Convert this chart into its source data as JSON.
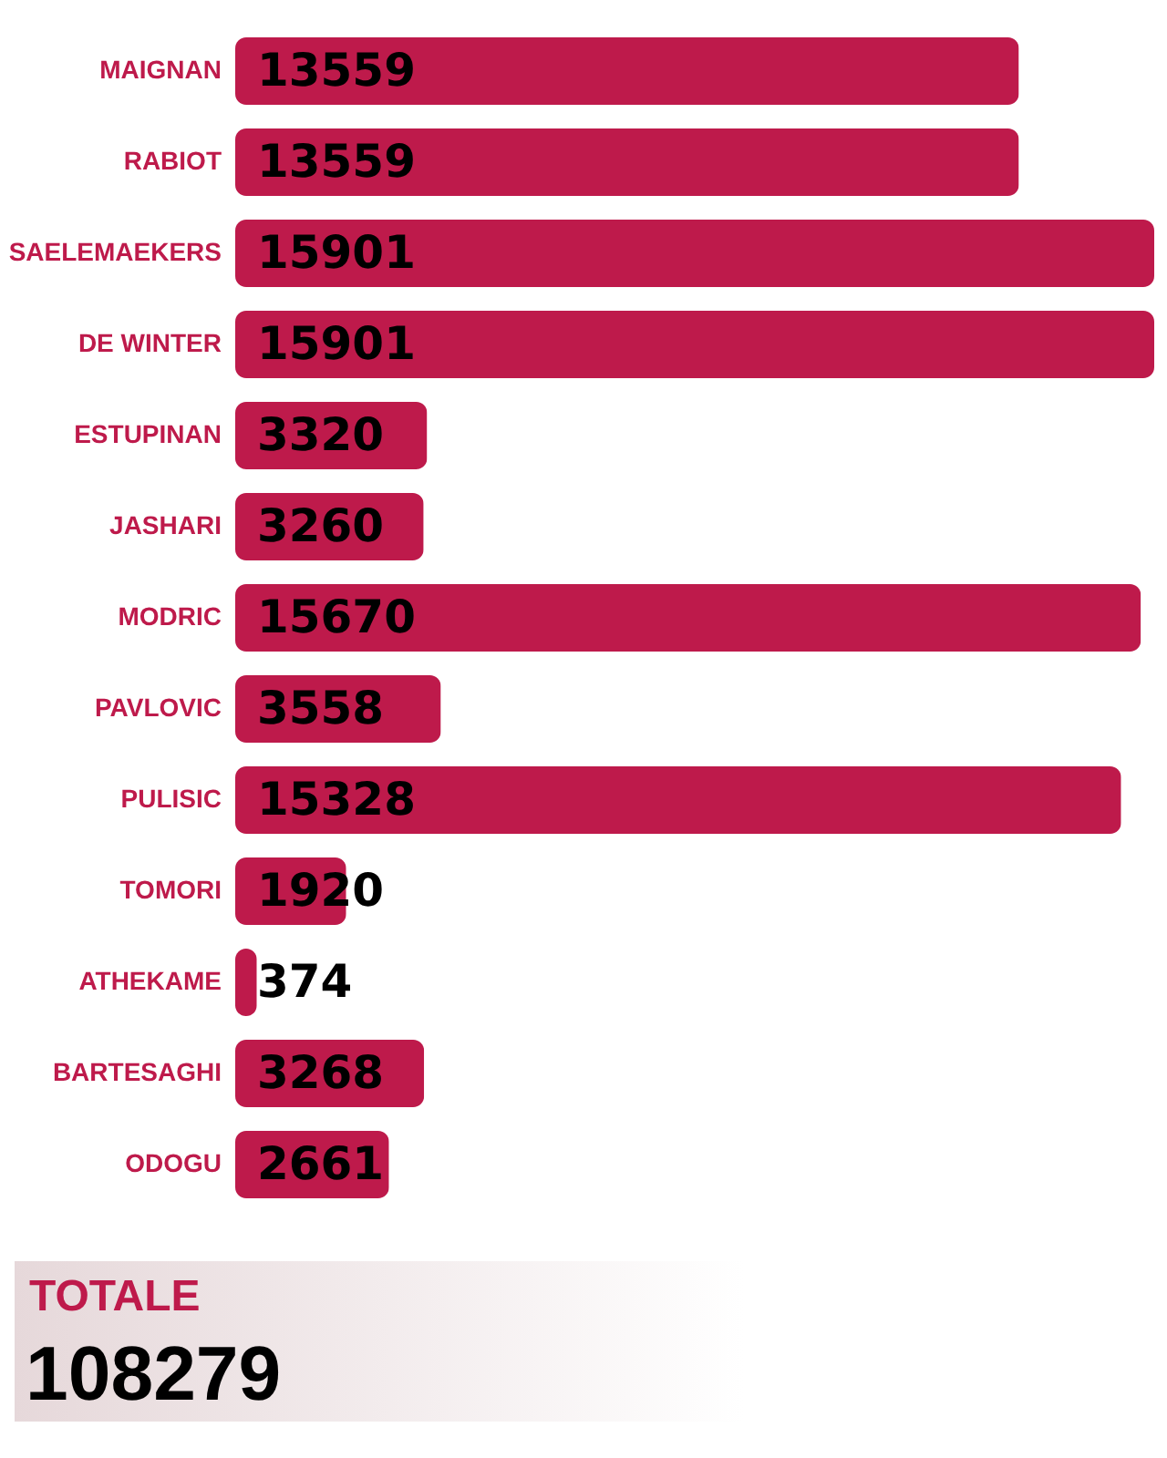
{
  "chart_data": {
    "type": "bar",
    "orientation": "horizontal",
    "data_labels": true,
    "grid": false,
    "categories": [
      "MAIGNAN",
      "RABIOT",
      "SAELEMAEKERS",
      "DE WINTER",
      "ESTUPINAN",
      "JASHARI",
      "MODRIC",
      "PAVLOVIC",
      "PULISIC",
      "TOMORI",
      "ATHEKAME",
      "BARTESAGHI",
      "ODOGU"
    ],
    "values": [
      13559,
      13559,
      15901,
      15901,
      3320,
      3260,
      15670,
      3558,
      15328,
      1920,
      374,
      3268,
      2661
    ],
    "color": "#be1a4b",
    "annotations": [
      "TOTALE",
      "108279"
    ]
  }
}
